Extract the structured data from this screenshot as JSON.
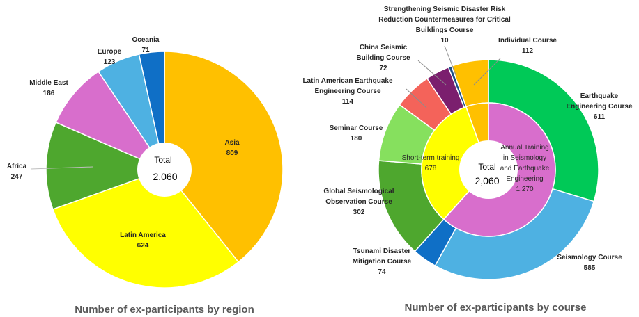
{
  "chart_data": [
    {
      "type": "pie",
      "caption": "Number of ex-participants  by region",
      "center_label": "Total",
      "center_value": "2,060",
      "slices": [
        {
          "name": "Asia",
          "value": 809,
          "value_label": "809",
          "color": "#FFC000"
        },
        {
          "name": "Latin America",
          "value": 624,
          "value_label": "624",
          "color": "#FFFF00"
        },
        {
          "name": "Africa",
          "value": 247,
          "value_label": "247",
          "color": "#4EA72E"
        },
        {
          "name": "Middle East",
          "value": 186,
          "value_label": "186",
          "color": "#D86ECC"
        },
        {
          "name": "Europe",
          "value": 123,
          "value_label": "123",
          "color": "#4EB1E2"
        },
        {
          "name": "Oceania",
          "value": 71,
          "value_label": "71",
          "color": "#0F6FC6"
        }
      ]
    },
    {
      "type": "pie",
      "caption": "Number of ex-participants  by course",
      "center_label": "Total",
      "center_value": "2,060",
      "inner_ring": [
        {
          "name": "Annual Training in Seismology and Earthquake Engineering",
          "value": 1270,
          "value_label": "1,270",
          "color": "#D86ECC"
        },
        {
          "name": "Short-term training",
          "value": 678,
          "value_label": "678",
          "color": "#FFFF00"
        },
        {
          "name": "",
          "value": 112,
          "value_label": "",
          "color": "#FFC000"
        }
      ],
      "outer_ring": [
        {
          "name": "Earthquake Engineering Course",
          "value": 611,
          "value_label": "611",
          "color": "#00C957"
        },
        {
          "name": "Seismology Course",
          "value": 585,
          "value_label": "585",
          "color": "#4EB1E2"
        },
        {
          "name": "Tsunami Disaster Mitigation Course",
          "value": 74,
          "value_label": "74",
          "color": "#0F6FC6"
        },
        {
          "name": "Global Seismological Observation Course",
          "value": 302,
          "value_label": "302",
          "color": "#4EA72E"
        },
        {
          "name": "Seminar Course",
          "value": 180,
          "value_label": "180",
          "color": "#86E05E"
        },
        {
          "name": "Latin American Earthquake Engineering Course",
          "value": 114,
          "value_label": "114",
          "color": "#F4635A"
        },
        {
          "name": "China Seismic Building Course",
          "value": 72,
          "value_label": "72",
          "color": "#7B1F6E"
        },
        {
          "name": "Strengthening Seismic Disaster Risk Reduction Countermeasures for Critical Buildings Course",
          "value": 10,
          "value_label": "10",
          "color": "#1B4E88"
        },
        {
          "name": "Individual Course",
          "value": 112,
          "value_label": "112",
          "color": "#FFC000"
        }
      ]
    }
  ]
}
